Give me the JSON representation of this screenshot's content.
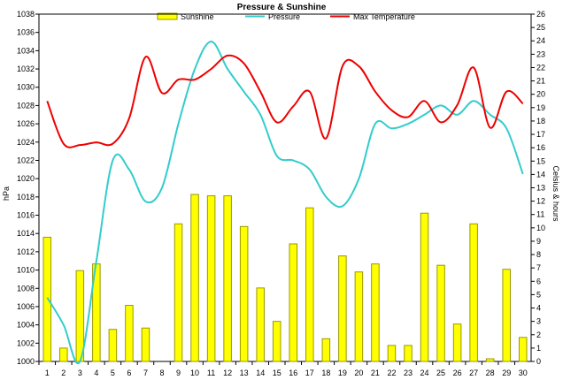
{
  "chart_data": {
    "type": "bar",
    "title": "Pressure & Sunshine",
    "ylabel": "hPa",
    "y2label": "Celsius & hours",
    "ylim": [
      1000,
      1038
    ],
    "y2lim": [
      0,
      26
    ],
    "x": [
      1,
      2,
      3,
      4,
      5,
      6,
      7,
      8,
      9,
      10,
      11,
      12,
      13,
      14,
      15,
      16,
      17,
      18,
      19,
      20,
      21,
      22,
      23,
      24,
      25,
      26,
      27,
      28,
      29,
      30
    ],
    "legend_position": "top",
    "colors": {
      "sunshine": "#ffff00",
      "sunshine_edge": "#999900",
      "pressure": "#33cccc",
      "max_temperature": "#ee0000"
    },
    "series": [
      {
        "name": "Sunshine",
        "axis": "right",
        "kind": "bar",
        "values": [
          9.3,
          1.0,
          6.8,
          7.3,
          2.4,
          4.2,
          2.5,
          0,
          10.3,
          12.5,
          12.4,
          12.4,
          10.1,
          5.5,
          3.0,
          8.8,
          11.5,
          1.7,
          7.9,
          6.7,
          7.3,
          1.2,
          1.2,
          11.1,
          7.2,
          2.8,
          10.3,
          0.2,
          6.9,
          1.8
        ]
      },
      {
        "name": "Pressure",
        "axis": "left",
        "kind": "line",
        "values": [
          1007,
          1004,
          1000,
          1011,
          1022,
          1021,
          1017.5,
          1019,
          1026,
          1032,
          1035,
          1032,
          1029.5,
          1027,
          1022.5,
          1022,
          1021,
          1018,
          1017,
          1020,
          1026,
          1025.5,
          1026,
          1027,
          1028,
          1027,
          1028.5,
          1027,
          1025.5,
          1020.5
        ]
      },
      {
        "name": "Max Temperature",
        "axis": "right",
        "kind": "line",
        "values": [
          19.5,
          16.3,
          16.2,
          16.4,
          16.3,
          18.2,
          22.8,
          20.1,
          21.1,
          21.1,
          21.9,
          22.9,
          22.3,
          20.2,
          17.9,
          19.1,
          20.2,
          16.7,
          22.1,
          22.1,
          20.2,
          18.8,
          18.3,
          19.5,
          17.9,
          19.2,
          22.0,
          17.5,
          20.2,
          19.3
        ]
      }
    ],
    "left_ticks": [
      "1000",
      "1002",
      "1004",
      "1006",
      "1008",
      "1010",
      "1012",
      "1014",
      "1016",
      "1018",
      "1020",
      "1022",
      "1024",
      "1026",
      "1028",
      "1030",
      "1032",
      "1034",
      "1036",
      "1038"
    ],
    "right_ticks": [
      "0",
      "1",
      "2",
      "3",
      "4",
      "5",
      "6",
      "7",
      "8",
      "9",
      "10",
      "11",
      "12",
      "13",
      "14",
      "15",
      "16",
      "17",
      "18",
      "19",
      "20",
      "21",
      "22",
      "23",
      "24",
      "25",
      "26"
    ],
    "x_ticks": [
      "1",
      "2",
      "3",
      "4",
      "5",
      "6",
      "7",
      "8",
      "9",
      "10",
      "11",
      "12",
      "13",
      "14",
      "15",
      "16",
      "17",
      "18",
      "19",
      "20",
      "21",
      "22",
      "23",
      "24",
      "25",
      "26",
      "27",
      "28",
      "29",
      "30"
    ]
  }
}
